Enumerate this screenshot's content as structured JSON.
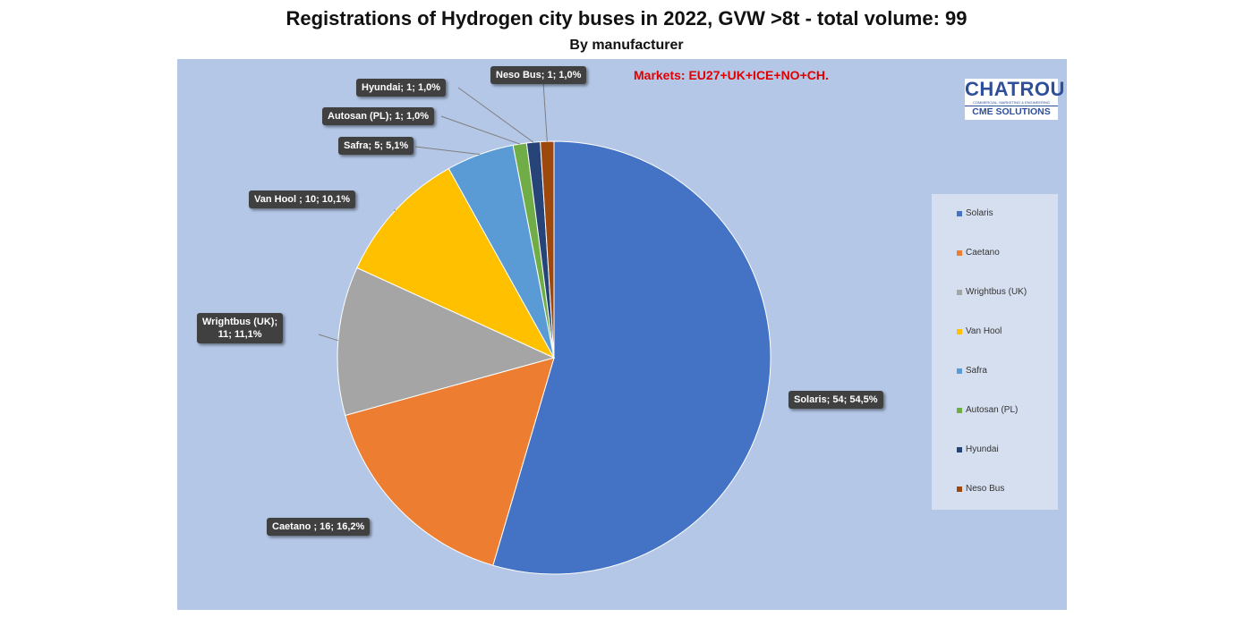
{
  "chart_data": {
    "type": "pie",
    "title": "Registrations of Hydrogen city buses in  2022, GVW >8t - total volume: 99",
    "subtitle": "By manufacturer",
    "annotation": "Markets: EU27+UK+ICE+NO+CH.",
    "legend_position": "right",
    "categories": [
      "Solaris",
      "Caetano",
      "Wrightbus (UK)",
      "Van Hool",
      "Safra",
      "Autosan (PL)",
      "Hyundai",
      "Neso Bus"
    ],
    "values": [
      54,
      16,
      11,
      10,
      5,
      1,
      1,
      1
    ],
    "percentages": [
      "54,5%",
      "16,2%",
      "11,1%",
      "10,1%",
      "5,1%",
      "1,0%",
      "1,0%",
      "1,0%"
    ],
    "colors": [
      "#4472c4",
      "#ed7d31",
      "#a5a5a5",
      "#ffc000",
      "#5b9bd5",
      "#70ad47",
      "#264478",
      "#9e480e"
    ],
    "data_labels": [
      "Solaris; 54; 54,5%",
      "Caetano ; 16; 16,2%",
      "Wrightbus (UK);\n11; 11,1%",
      "Van Hool ; 10; 10,1%",
      "Safra; 5; 5,1%",
      "Autosan (PL); 1; 1,0%",
      "Hyundai; 1; 1,0%",
      "Neso Bus; 1; 1,0%"
    ]
  },
  "logo": {
    "main": "CHATROU",
    "small": "COMMERCIAL, MARKETING & ENGINEERING",
    "sub": "CME SOLUTIONS"
  }
}
